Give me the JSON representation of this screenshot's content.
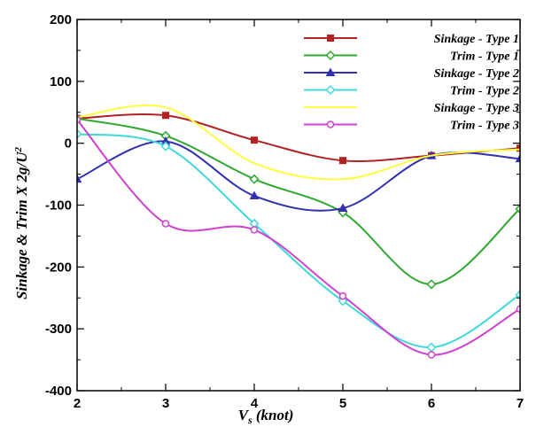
{
  "chart_data": {
    "type": "line",
    "xlabel_main": "V",
    "xlabel_sub": "s",
    "xlabel_rest": " (knot)",
    "ylabel": "Sinkage & Trim X 2g/U",
    "ylabel_sup": "2",
    "xlim": [
      2,
      7
    ],
    "ylim": [
      -400,
      200
    ],
    "xticks": [
      2,
      3,
      4,
      5,
      6,
      7
    ],
    "yticks": [
      -400,
      -300,
      -200,
      -100,
      0,
      100,
      200
    ],
    "legend_position": "top-right",
    "grid": false,
    "x": [
      2,
      3,
      4,
      5,
      6,
      7
    ],
    "series": [
      {
        "name": "Sinkage - Type 1",
        "color": "#b22222",
        "marker": "square",
        "values": [
          40,
          45,
          5,
          -28,
          -20,
          -8
        ]
      },
      {
        "name": "Trim - Type 1",
        "color": "#2ea82e",
        "marker": "diamond-open",
        "values": [
          40,
          12,
          -58,
          -112,
          -228,
          -106
        ]
      },
      {
        "name": "Sinkage - Type 2",
        "color": "#3030b0",
        "marker": "triangle",
        "values": [
          -58,
          3,
          -85,
          -105,
          -20,
          -25
        ]
      },
      {
        "name": "Trim - Type 2",
        "color": "#40d8d8",
        "marker": "diamond-open",
        "values": [
          15,
          -5,
          -130,
          -255,
          -330,
          -245
        ]
      },
      {
        "name": "Sinkage - Type 3",
        "color": "#ffff40",
        "marker": "none",
        "values": [
          42,
          58,
          -32,
          -58,
          -20,
          -10
        ]
      },
      {
        "name": "Trim - Type 3",
        "color": "#d040d0",
        "marker": "circle-open",
        "values": [
          38,
          -130,
          -140,
          -247,
          -342,
          -268
        ]
      }
    ]
  }
}
